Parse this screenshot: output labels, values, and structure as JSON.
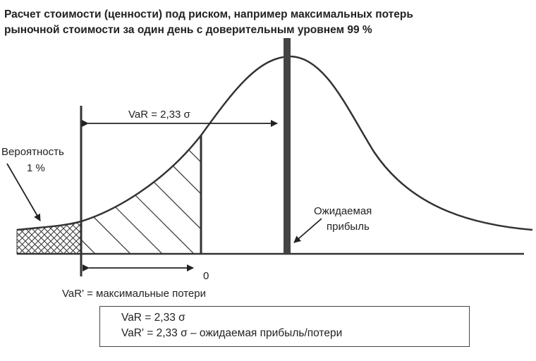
{
  "title": {
    "line1": "Расчет стоимости (ценности) под риском, например максимальных потерь",
    "line2": "рыночной стоимости за один день с доверительным уровнем 99 %"
  },
  "labels": {
    "var_arrow": "VaR = 2,33 σ",
    "probability_line1": "Вероятность",
    "probability_line2": "1 %",
    "expected_line1": "Ожидаемая",
    "expected_line2": "прибыль",
    "zero": "0",
    "var_prime_caption": "VaR' = максимальные потери"
  },
  "formulas": {
    "line1": "VaR = 2,33 σ",
    "line2": "VaR' = 2,33 σ – ожидаемая прибыль/потери"
  },
  "colors": {
    "stroke": "#333333",
    "text": "#222222"
  }
}
